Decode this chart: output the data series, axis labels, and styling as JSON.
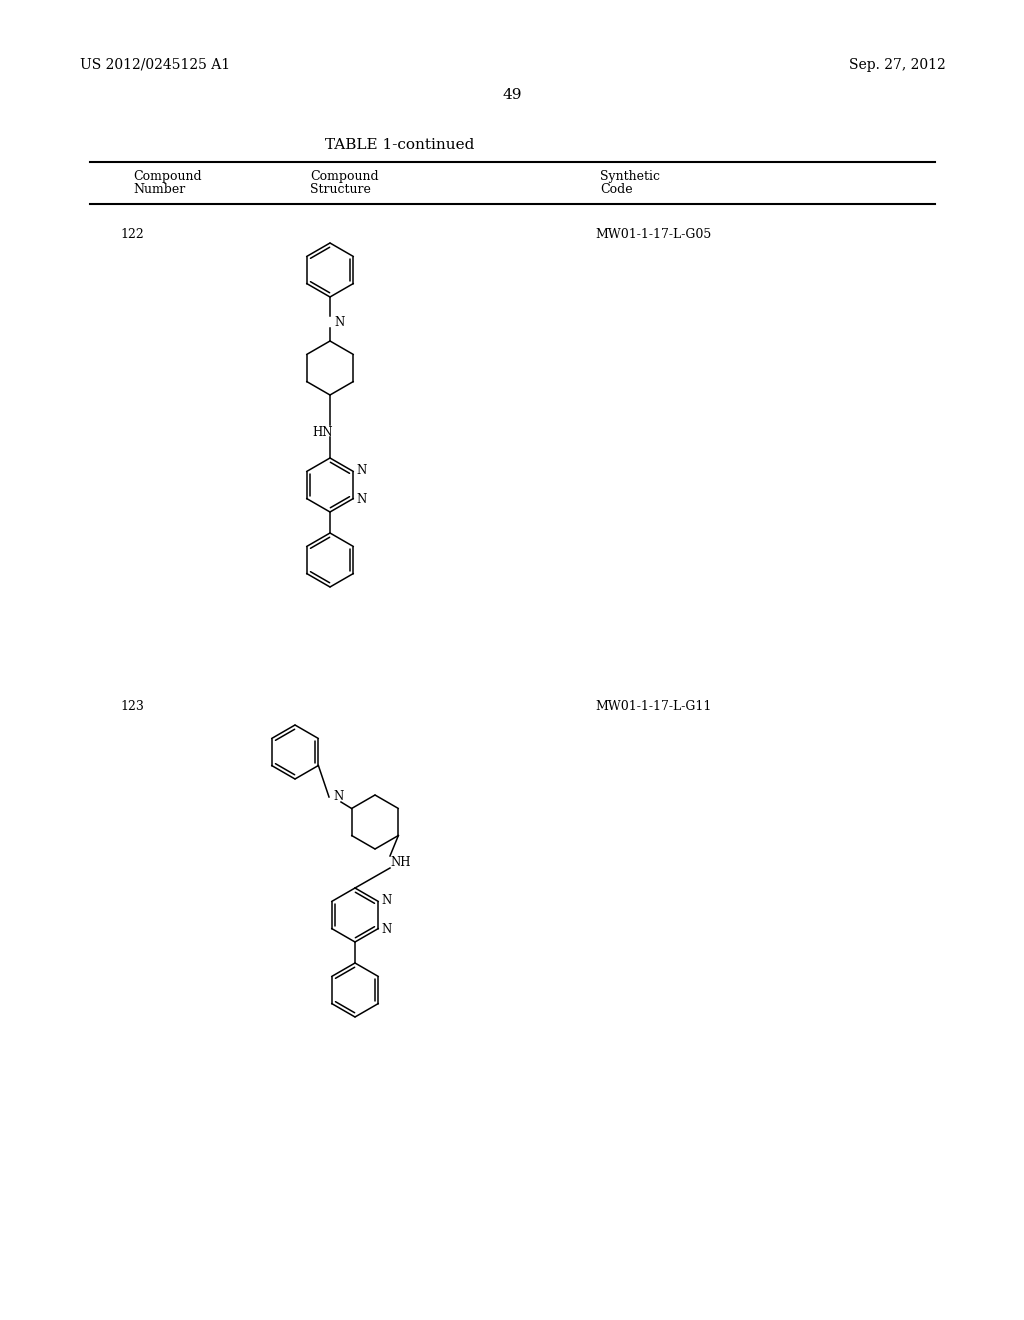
{
  "page_header_left": "US 2012/0245125 A1",
  "page_header_right": "Sep. 27, 2012",
  "page_number": "49",
  "table_title": "TABLE 1-continued",
  "col1_header1": "Compound",
  "col1_header2": "Number",
  "col2_header1": "Compound",
  "col2_header2": "Structure",
  "col3_header1": "Synthetic",
  "col3_header2": "Code",
  "compound1_number": "122",
  "compound1_code": "MW01-1-17-L-G05",
  "compound2_number": "123",
  "compound2_code": "MW01-1-17-L-G11",
  "bg_color": "#ffffff",
  "text_color": "#000000",
  "line_color": "#000000"
}
